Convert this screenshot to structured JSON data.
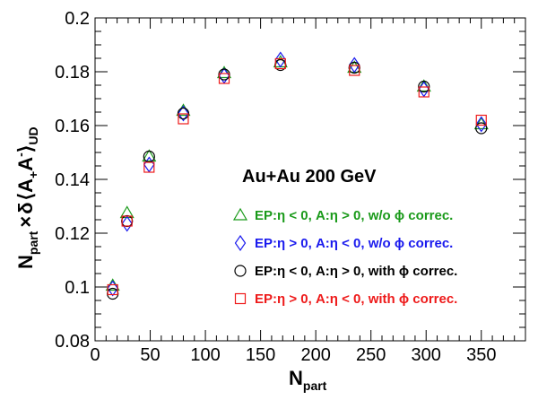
{
  "chart_data": {
    "type": "scatter",
    "title": "",
    "xlabel": {
      "main": "N",
      "sub": "part"
    },
    "ylabel": {
      "prefix": "N",
      "prefix_sub": "part",
      "times": "×",
      "delta": "δ",
      "a_plus": "A",
      "plus": "+",
      "a_minus": "A",
      "minus": "-",
      "sub": "UD"
    },
    "xlim": [
      0,
      390
    ],
    "ylim": [
      0.08,
      0.2
    ],
    "x_ticks": [
      0,
      50,
      100,
      150,
      200,
      250,
      300,
      350
    ],
    "x_tick_labels": [
      "0",
      "50",
      "100",
      "150",
      "200",
      "250",
      "300",
      "350"
    ],
    "y_ticks": [
      0.08,
      0.1,
      0.12,
      0.14,
      0.16,
      0.18,
      0.2
    ],
    "y_tick_labels": [
      "0.08",
      "0.1",
      "0.12",
      "0.14",
      "0.16",
      "0.18",
      "0.2"
    ],
    "annotation": "Au+Au 200 GeV",
    "legend_position": "bottom-right",
    "series": [
      {
        "name": "EP:η < 0, A:η > 0, w/o ϕ correc.",
        "legend_parts": {
          "lead": "EP:",
          "eta1": "η < 0, A:",
          "eta2": "η > 0, w/o ",
          "phi": "ϕ",
          "tail": " correc."
        },
        "marker": "triangle",
        "color": "#1a9a1a",
        "x": [
          16,
          29,
          49,
          80,
          117,
          168,
          235,
          298,
          350
        ],
        "y": [
          0.1005,
          0.1275,
          0.1485,
          0.1655,
          0.1795,
          0.1835,
          0.1815,
          0.1745,
          0.1605
        ]
      },
      {
        "name": "EP:η > 0, A:η < 0, w/o ϕ correc.",
        "legend_parts": {
          "lead": "EP:",
          "eta1": "η > 0, A:",
          "eta2": "η < 0, w/o ",
          "phi": "ϕ",
          "tail": " correc."
        },
        "marker": "diamond",
        "color": "#1a1aee",
        "x": [
          16,
          29,
          49,
          80,
          117,
          168,
          235,
          298,
          350
        ],
        "y": [
          0.0995,
          0.1235,
          0.1455,
          0.1645,
          0.1785,
          0.1845,
          0.1825,
          0.1735,
          0.1605
        ]
      },
      {
        "name": "EP:η < 0, A:η > 0, with ϕ correc.",
        "legend_parts": {
          "lead": "EP:",
          "eta1": "η < 0, A:",
          "eta2": "η > 0, with ",
          "phi": "ϕ",
          "tail": " correc."
        },
        "marker": "circle",
        "color": "#000000",
        "x": [
          16,
          29,
          49,
          80,
          117,
          168,
          235,
          298,
          350
        ],
        "y": [
          0.0975,
          0.1245,
          0.1485,
          0.1645,
          0.179,
          0.1825,
          0.1815,
          0.1745,
          0.159
        ]
      },
      {
        "name": "EP:η > 0, A:η < 0, with ϕ correc.",
        "legend_parts": {
          "lead": "EP:",
          "eta1": "η > 0, A:",
          "eta2": "η < 0, with ",
          "phi": "ϕ",
          "tail": " correc."
        },
        "marker": "square",
        "color": "#ee1a1a",
        "x": [
          16,
          29,
          49,
          80,
          117,
          168,
          235,
          298,
          350
        ],
        "y": [
          0.099,
          0.1245,
          0.1445,
          0.1625,
          0.1775,
          0.183,
          0.1805,
          0.1725,
          0.162
        ]
      }
    ]
  }
}
